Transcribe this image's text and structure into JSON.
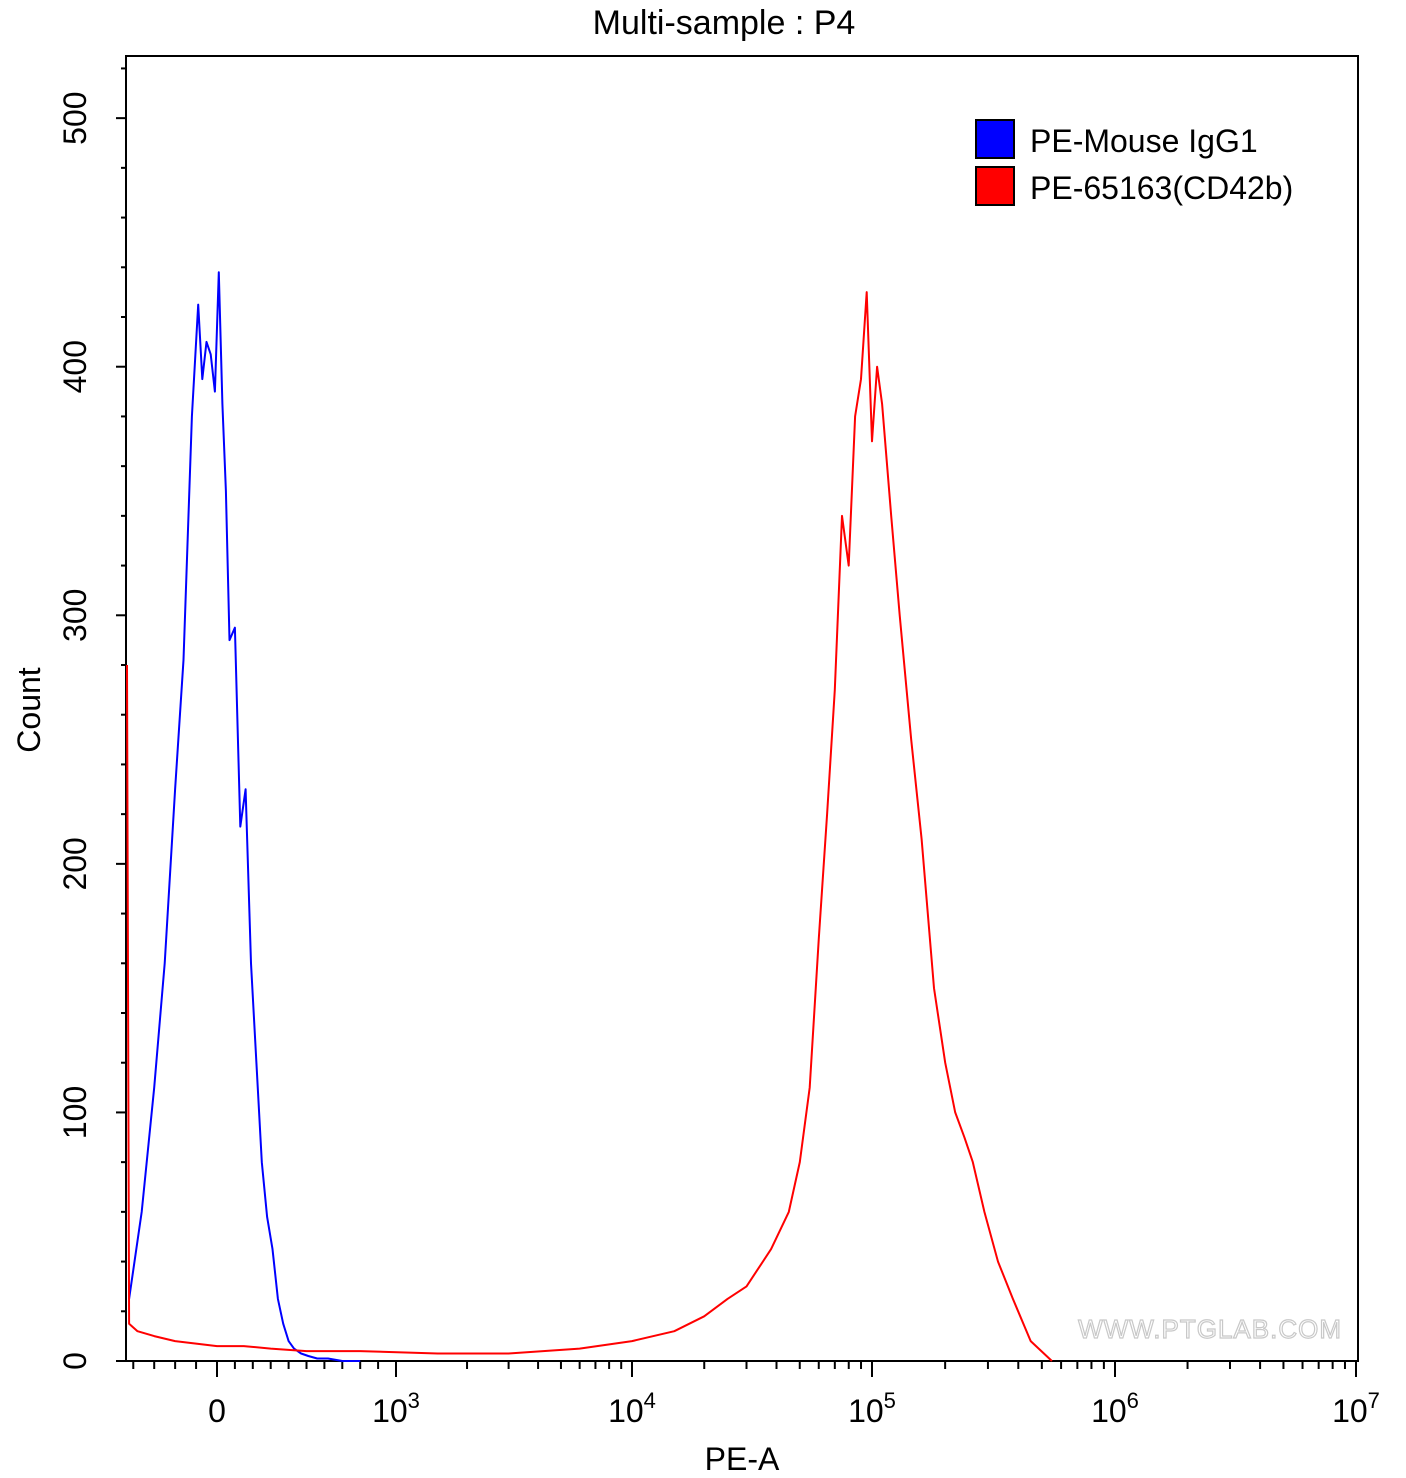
{
  "chart_data": {
    "type": "line",
    "title": "Multi-sample : P4",
    "xlabel": "PE-A",
    "ylabel": "Count",
    "xscale": "biexponential",
    "ylim": [
      0,
      525
    ],
    "y_ticks": [
      {
        "value": 0,
        "label": "0"
      },
      {
        "value": 100,
        "label": "100"
      },
      {
        "value": 200,
        "label": "200"
      },
      {
        "value": 300,
        "label": "300"
      },
      {
        "value": 400,
        "label": "400"
      },
      {
        "value": 500,
        "label": "500"
      }
    ],
    "x_ticks": [
      {
        "value": 0,
        "base": "0",
        "exp": ""
      },
      {
        "value": 1000,
        "base": "10",
        "exp": "3"
      },
      {
        "value": 10000,
        "base": "10",
        "exp": "4"
      },
      {
        "value": 100000,
        "base": "10",
        "exp": "5"
      },
      {
        "value": 1000000,
        "base": "10",
        "exp": "6"
      },
      {
        "value": 10000000,
        "base": "10",
        "exp": "7"
      }
    ],
    "legend": {
      "position": "top-right"
    },
    "watermark": "WWW.PTGLAB.COM",
    "series": [
      {
        "name": "PE-Mouse IgG1",
        "color": "#0000ff",
        "x": [
          -420,
          -360,
          -300,
          -250,
          -200,
          -160,
          -120,
          -90,
          -70,
          -50,
          -30,
          -10,
          10,
          30,
          50,
          70,
          100,
          130,
          160,
          190,
          220,
          250,
          280,
          310,
          340,
          370,
          400,
          430,
          470,
          510,
          560,
          620,
          700,
          800
        ],
        "y": [
          25,
          60,
          110,
          160,
          230,
          282,
          380,
          425,
          395,
          410,
          405,
          390,
          438,
          385,
          350,
          290,
          295,
          215,
          230,
          160,
          120,
          80,
          58,
          45,
          25,
          15,
          8,
          5,
          3,
          2,
          1,
          1,
          0,
          0
        ]
      },
      {
        "name": "PE-65163(CD42b)",
        "color": "#ff0000",
        "x": [
          -430,
          -420,
          -380,
          -300,
          -200,
          -100,
          0,
          150,
          300,
          500,
          800,
          1500,
          3000,
          6000,
          10000,
          15000,
          20000,
          25000,
          30000,
          38000,
          45000,
          50000,
          55000,
          60000,
          65000,
          70000,
          75000,
          80000,
          85000,
          90000,
          95000,
          100000,
          105000,
          110000,
          120000,
          130000,
          145000,
          160000,
          180000,
          200000,
          220000,
          240000,
          260000,
          290000,
          330000,
          380000,
          450000,
          550000
        ],
        "y": [
          280,
          15,
          12,
          10,
          8,
          7,
          6,
          6,
          5,
          4,
          4,
          3,
          3,
          5,
          8,
          12,
          18,
          25,
          30,
          45,
          60,
          80,
          110,
          170,
          220,
          270,
          340,
          320,
          380,
          395,
          430,
          370,
          400,
          385,
          340,
          300,
          250,
          210,
          150,
          120,
          100,
          90,
          80,
          60,
          40,
          25,
          8,
          0
        ]
      }
    ]
  }
}
